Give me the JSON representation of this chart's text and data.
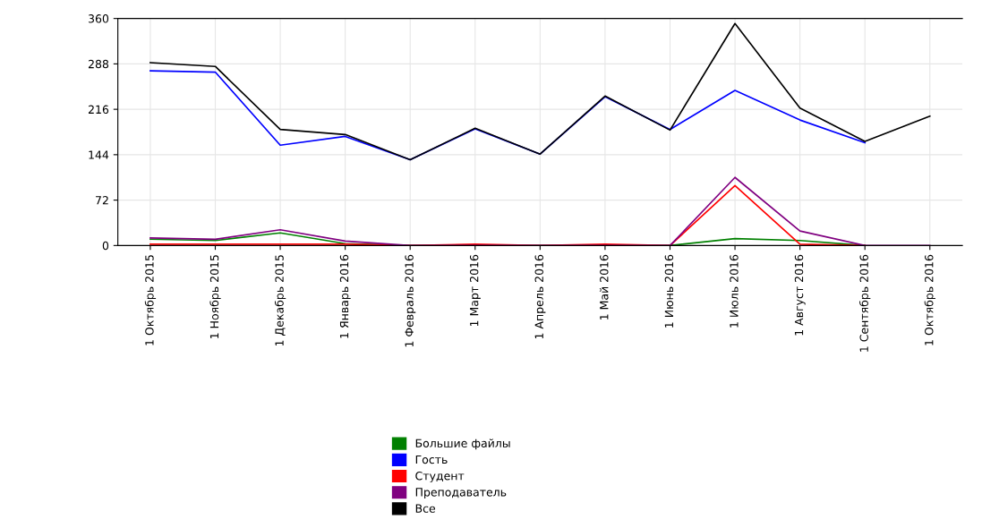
{
  "chart_data": {
    "type": "line",
    "categories": [
      "1 Октябрь 2015",
      "1 Ноябрь 2015",
      "1 Декабрь 2015",
      "1 Январь 2016",
      "1 Февраль 2016",
      "1 Март 2016",
      "1 Апрель 2016",
      "1 Май 2016",
      "1 Июнь 2016",
      "1 Июль 2016",
      "1 Август 2016",
      "1 Сентябрь 2016",
      "1 Октябрь 2016"
    ],
    "series": [
      {
        "name": "Большие файлы",
        "color": "#008000",
        "values": [
          10,
          8,
          20,
          3,
          0,
          0,
          0,
          0,
          0,
          11,
          8,
          0,
          null
        ]
      },
      {
        "name": "Гость",
        "color": "#0000ff",
        "values": [
          277,
          275,
          159,
          173,
          136,
          185,
          145,
          236,
          184,
          246,
          199,
          163,
          null
        ]
      },
      {
        "name": "Студент",
        "color": "#ff0000",
        "values": [
          2,
          2,
          2,
          2,
          0,
          2,
          0,
          2,
          0,
          95,
          2,
          0,
          null
        ]
      },
      {
        "name": "Преподаватель",
        "color": "#800080",
        "values": [
          12,
          10,
          25,
          7,
          0,
          0,
          0,
          0,
          0,
          108,
          23,
          0,
          0
        ]
      },
      {
        "name": "Все",
        "color": "#000000",
        "values": [
          290,
          284,
          184,
          176,
          136,
          186,
          145,
          237,
          183,
          352,
          218,
          165,
          205
        ]
      }
    ],
    "ylim": [
      0,
      360
    ],
    "yticks": [
      0,
      72,
      144,
      216,
      288,
      360
    ],
    "grid": true,
    "legend": "bottom"
  }
}
